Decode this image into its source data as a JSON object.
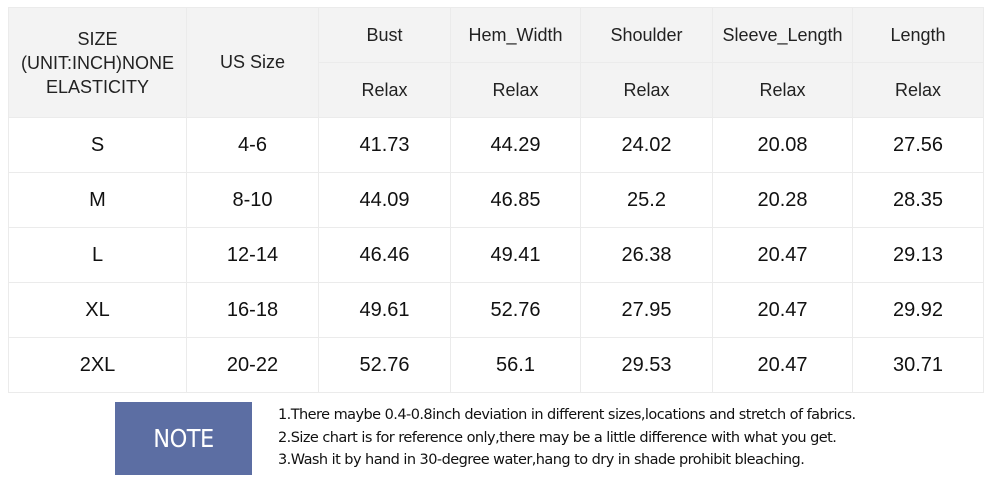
{
  "table": {
    "header_first": "SIZE (UNIT:INCH)NONE ELASTICITY",
    "header_first_lines": [
      "SIZE",
      "(UNIT:INCH)NONE",
      "ELASTICITY"
    ],
    "header_us": "US Size",
    "measurements": [
      {
        "name": "Bust",
        "sub": "Relax"
      },
      {
        "name": "Hem_Width",
        "sub": "Relax"
      },
      {
        "name": "Shoulder",
        "sub": "Relax"
      },
      {
        "name": "Sleeve_Length",
        "sub": "Relax"
      },
      {
        "name": "Length",
        "sub": "Relax"
      }
    ],
    "rows": [
      [
        "S",
        "4-6",
        "41.73",
        "44.29",
        "24.02",
        "20.08",
        "27.56"
      ],
      [
        "M",
        "8-10",
        "44.09",
        "46.85",
        "25.2",
        "20.28",
        "28.35"
      ],
      [
        "L",
        "12-14",
        "46.46",
        "49.41",
        "26.38",
        "20.47",
        "29.13"
      ],
      [
        "XL",
        "16-18",
        "49.61",
        "52.76",
        "27.95",
        "20.47",
        "29.92"
      ],
      [
        "2XL",
        "20-22",
        "52.76",
        "56.1",
        "29.53",
        "20.47",
        "30.71"
      ]
    ]
  },
  "note": {
    "label": "NOTE",
    "color": "#5c6ea3",
    "lines": [
      "1.There maybe 0.4-0.8inch deviation in different sizes,locations and stretch of fabrics.",
      "2.Size chart is for reference only,there may be a little difference with what you get.",
      "3.Wash it by hand in 30-degree water,hang to dry in shade prohibit bleaching."
    ]
  }
}
